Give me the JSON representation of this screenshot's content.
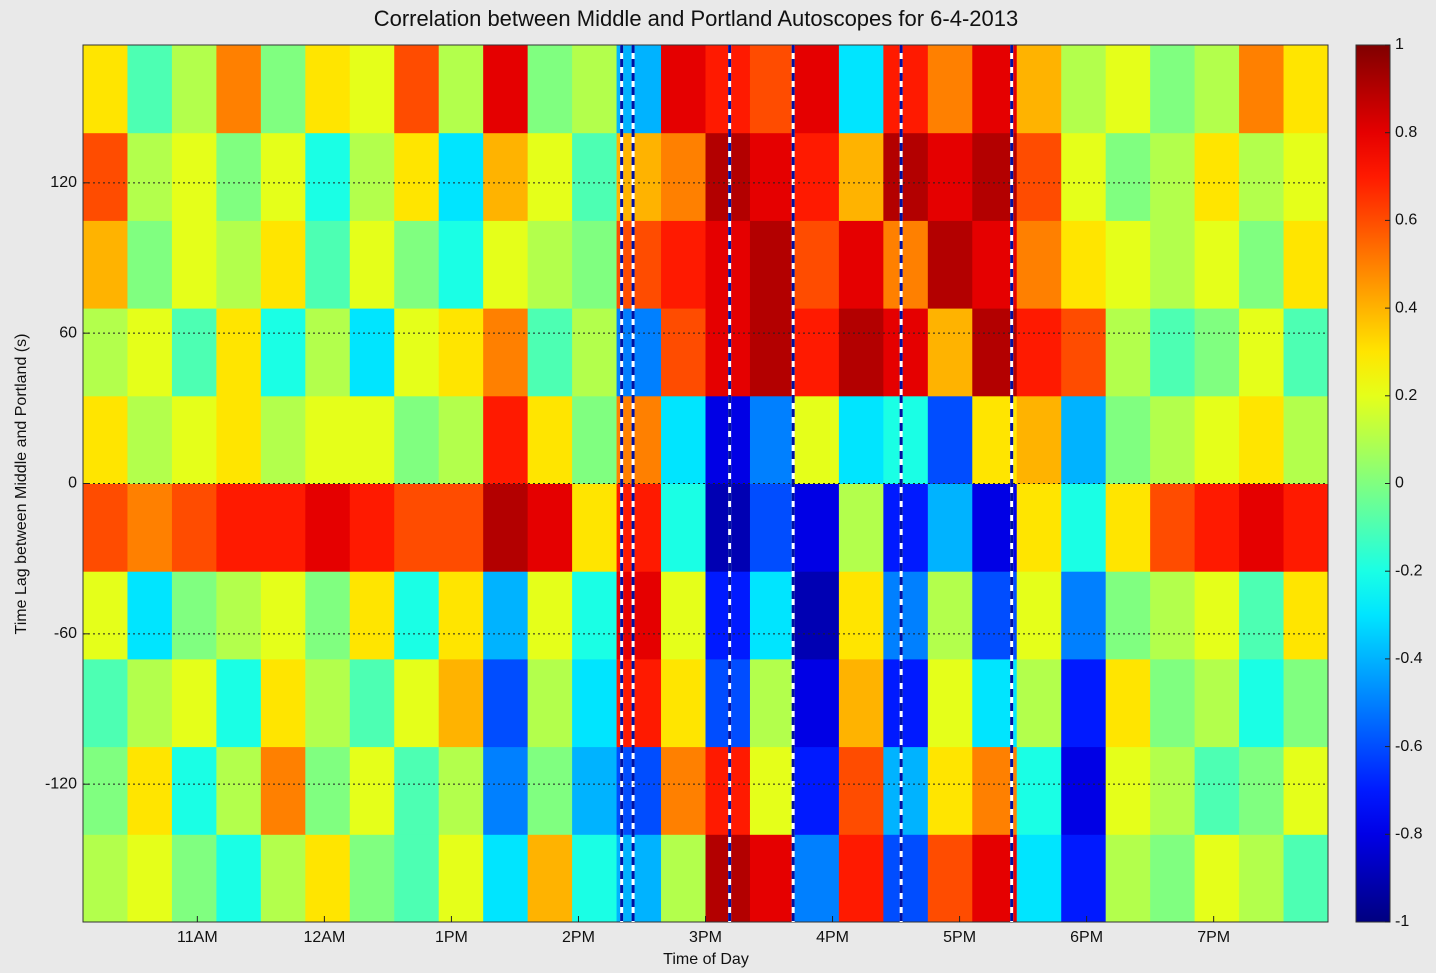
{
  "chart_data": {
    "type": "heatmap",
    "title": "Correlation between Middle and Portland Autoscopes for 6-4-2013",
    "xlabel": "Time of Day",
    "ylabel": "Time Lag between Middle and Portland (s)",
    "xlim": [
      10.1,
      19.9
    ],
    "xticks": [
      {
        "value": 11,
        "label": "11AM"
      },
      {
        "value": 12,
        "label": "12AM"
      },
      {
        "value": 13,
        "label": "1PM"
      },
      {
        "value": 14,
        "label": "2PM"
      },
      {
        "value": 15,
        "label": "3PM"
      },
      {
        "value": 16,
        "label": "4PM"
      },
      {
        "value": 17,
        "label": "5PM"
      },
      {
        "value": 18,
        "label": "6PM"
      },
      {
        "value": 19,
        "label": "7PM"
      }
    ],
    "ylim": [
      -175,
      175
    ],
    "yticks": [
      120,
      60,
      0,
      -60,
      -120
    ],
    "grid": true,
    "colormap": "jet",
    "clim": [
      -1,
      1
    ],
    "colorbar_ticks": [
      1,
      0.8,
      0.6,
      0.4,
      0.2,
      0,
      -0.2,
      -0.4,
      -0.6,
      -0.8,
      -1
    ],
    "x_bins": [
      10.1,
      10.45,
      10.8,
      11.15,
      11.5,
      11.85,
      12.2,
      12.55,
      12.9,
      13.25,
      13.6,
      13.95,
      14.3,
      14.65,
      15.0,
      15.35,
      15.7,
      16.05,
      16.4,
      16.75,
      17.1,
      17.45,
      17.8,
      18.15,
      18.5,
      18.85,
      19.2,
      19.55,
      19.9
    ],
    "y_bins": [
      -175,
      -140,
      -105,
      -70,
      -35,
      0,
      35,
      70,
      105,
      140,
      175
    ],
    "z": [
      [
        0.1,
        0.2,
        0,
        -0.2,
        0.1,
        0.3,
        0,
        -0.1,
        0.2,
        -0.3,
        0.4,
        -0.2,
        -0.4,
        0.1,
        0.9,
        0.8,
        -0.5,
        0.7,
        -0.6,
        0.6,
        0.8,
        -0.3,
        -0.7,
        0.1,
        0,
        0.2,
        0.1,
        -0.1
      ],
      [
        0,
        0.3,
        -0.2,
        0.1,
        0.5,
        0,
        0.2,
        -0.1,
        0.1,
        -0.5,
        0,
        -0.4,
        -0.6,
        0.5,
        0.7,
        0.2,
        -0.7,
        0.6,
        -0.4,
        0.3,
        0.5,
        -0.2,
        -0.8,
        0.2,
        0.1,
        -0.1,
        0,
        0.2
      ],
      [
        -0.1,
        0.1,
        0.2,
        -0.2,
        0.3,
        0.1,
        -0.1,
        0.2,
        0.4,
        -0.6,
        0.1,
        -0.3,
        0.7,
        0.3,
        -0.6,
        0.1,
        -0.8,
        0.4,
        -0.7,
        0.2,
        -0.3,
        0.1,
        -0.7,
        0.3,
        0,
        0.1,
        -0.2,
        0
      ],
      [
        0.2,
        -0.3,
        0,
        0.1,
        0.2,
        0,
        0.3,
        -0.2,
        0.3,
        -0.4,
        0.2,
        -0.2,
        0.8,
        0.2,
        -0.7,
        -0.3,
        -0.9,
        0.3,
        -0.5,
        0.1,
        -0.6,
        0.2,
        -0.5,
        0,
        0.1,
        0.2,
        -0.1,
        0.3
      ],
      [
        0.6,
        0.5,
        0.6,
        0.7,
        0.7,
        0.8,
        0.7,
        0.6,
        0.6,
        0.9,
        0.8,
        0.3,
        0.7,
        -0.2,
        -0.9,
        -0.6,
        -0.8,
        0.1,
        -0.7,
        -0.4,
        -0.8,
        0.3,
        -0.2,
        0.3,
        0.6,
        0.7,
        0.8,
        0.7
      ],
      [
        0.3,
        0.1,
        0.2,
        0.3,
        0.1,
        0.2,
        0.2,
        0,
        0.1,
        0.7,
        0.3,
        0,
        0.5,
        -0.3,
        -0.8,
        -0.5,
        0.2,
        -0.3,
        -0.2,
        -0.6,
        0.3,
        0.4,
        -0.4,
        0,
        0.1,
        0.2,
        0.3,
        0.1
      ],
      [
        0.1,
        0.2,
        -0.1,
        0.3,
        -0.2,
        0.1,
        -0.3,
        0.2,
        0.3,
        0.5,
        -0.1,
        0.1,
        -0.5,
        0.6,
        0.8,
        0.9,
        0.7,
        0.9,
        0.8,
        0.4,
        0.9,
        0.7,
        0.6,
        0.1,
        -0.1,
        0,
        0.2,
        -0.1
      ],
      [
        0.4,
        0,
        0.2,
        0.1,
        0.3,
        -0.1,
        0.2,
        0,
        -0.2,
        0.2,
        0.1,
        0,
        0.6,
        0.7,
        0.8,
        0.9,
        0.6,
        0.8,
        0.5,
        0.9,
        0.8,
        0.5,
        0.3,
        0.2,
        0.1,
        0.2,
        0,
        0.3
      ],
      [
        0.6,
        0.1,
        0.2,
        0,
        0.2,
        -0.2,
        0.1,
        0.3,
        -0.3,
        0.4,
        0.2,
        -0.1,
        0.4,
        0.5,
        0.9,
        0.8,
        0.7,
        0.4,
        0.9,
        0.8,
        0.9,
        0.6,
        0.2,
        0,
        0.1,
        0.3,
        0.1,
        0.2
      ],
      [
        0.3,
        -0.1,
        0.1,
        0.5,
        0,
        0.3,
        0.2,
        0.6,
        0.1,
        0.8,
        0,
        0.1,
        -0.4,
        0.8,
        0.7,
        0.6,
        0.8,
        -0.3,
        0.7,
        0.5,
        0.8,
        0.4,
        0.1,
        0.2,
        0,
        0.1,
        0.5,
        0.3
      ]
    ],
    "dashed_lines_x": [
      14.34,
      14.43,
      15.19,
      15.69,
      16.54,
      17.41
    ]
  }
}
